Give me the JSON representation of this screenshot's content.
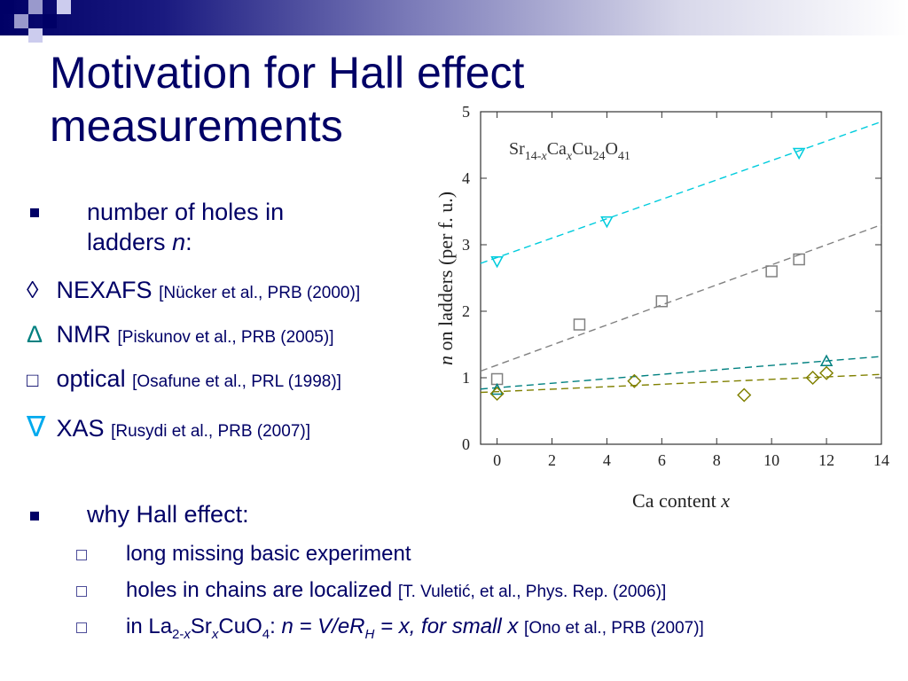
{
  "slide": {
    "title_line1": "Motivation for Hall effect",
    "title_line2": "measurements",
    "bullet1_line1": "number of holes in",
    "bullet1_line2": "ladders ",
    "bullet1_var": "n",
    "bullet1_colon": ":",
    "methods": [
      {
        "symbol": "◊",
        "name": "NEXAFS",
        "ref": "[Nücker et al., PRB (2000)]",
        "color": "#000066"
      },
      {
        "symbol": "Δ",
        "name": "NMR",
        "ref": "[Piskunov et al., PRB (2005)]",
        "color": "#008080"
      },
      {
        "symbol": "□",
        "name": "optical",
        "ref": "[Osafune et al., PRL (1998)]",
        "color": "#000066"
      },
      {
        "symbol": "∇",
        "name": "XAS",
        "ref": "[Rusydi et al., PRB (2007)]",
        "color": "#00aaee"
      }
    ],
    "bullet2": "why Hall effect:",
    "sub1": "long missing basic experiment",
    "sub2_text": "holes in chains are localized ",
    "sub2_ref": "[T. Vuletić, et al., Phys. Rep. (2006)]",
    "sub3": {
      "in": "in La",
      "sub_a": "2-",
      "sub_a_var": "x",
      "sr": "Sr",
      "sub_b_var": "x",
      "cuo": "CuO",
      "sub_c": "4",
      "colon": ": ",
      "eq": "n = V/eR",
      "sub_h": "H",
      "eq2": " = x, for small x  ",
      "ref": "[Ono et al., PRB (2007)]"
    }
  },
  "chart_data": {
    "type": "scatter",
    "formula": {
      "p1": "Sr",
      "s1": "14-",
      "s1v": "x",
      "p2": "Ca",
      "s2v": "x",
      "p3": "Cu",
      "s3": "24",
      "p4": "O",
      "s4": "41"
    },
    "xlabel": "Ca content ",
    "xlabel_var": "x",
    "ylabel_var": "n",
    "ylabel": " on ladders (per f. u.)",
    "xlim": [
      -0.6,
      14
    ],
    "ylim": [
      0,
      5
    ],
    "xticks": [
      "0",
      "2",
      "4",
      "6",
      "8",
      "10",
      "12",
      "14"
    ],
    "yticks": [
      "0",
      "1",
      "2",
      "3",
      "4",
      "5"
    ],
    "series": [
      {
        "marker": "triangle-down",
        "color": "#00ccdd",
        "points": [
          [
            0,
            2.75
          ],
          [
            4,
            3.35
          ],
          [
            11,
            4.38
          ]
        ],
        "fit": [
          [
            -0.6,
            2.72
          ],
          [
            14,
            4.85
          ]
        ]
      },
      {
        "marker": "square",
        "color": "#808080",
        "points": [
          [
            0,
            0.98
          ],
          [
            3,
            1.8
          ],
          [
            6,
            2.15
          ],
          [
            10,
            2.6
          ],
          [
            11,
            2.78
          ]
        ],
        "fit": [
          [
            -0.6,
            1.1
          ],
          [
            14,
            3.3
          ]
        ]
      },
      {
        "marker": "triangle",
        "color": "#008080",
        "points": [
          [
            0,
            0.82
          ],
          [
            12,
            1.25
          ]
        ],
        "fit": [
          [
            -0.6,
            0.83
          ],
          [
            14,
            1.32
          ]
        ]
      },
      {
        "marker": "diamond",
        "color": "#808000",
        "points": [
          [
            0,
            0.76
          ],
          [
            5,
            0.95
          ],
          [
            9,
            0.74
          ],
          [
            11.5,
            1.0
          ],
          [
            12,
            1.07
          ]
        ],
        "fit": [
          [
            -0.6,
            0.78
          ],
          [
            14,
            1.05
          ]
        ]
      }
    ]
  }
}
